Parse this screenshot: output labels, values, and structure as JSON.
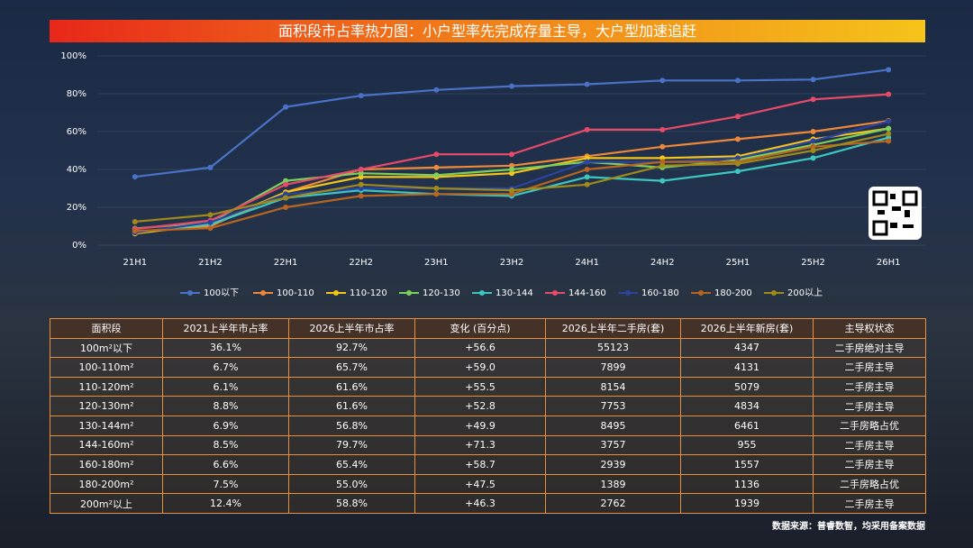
{
  "chart_data": {
    "type": "line",
    "title": "面积段市占率热力图：小户型率先完成存量主导，大户型加速追赶",
    "categories": [
      "21H1",
      "21H2",
      "22H1",
      "22H2",
      "23H1",
      "23H2",
      "24H1",
      "24H2",
      "25H1",
      "25H2",
      "26H1"
    ],
    "ylim": [
      0,
      100
    ],
    "yticks": [
      {
        "value": 0,
        "label": "0%"
      },
      {
        "value": 20,
        "label": "20%"
      },
      {
        "value": 40,
        "label": "40%"
      },
      {
        "value": 60,
        "label": "60%"
      },
      {
        "value": 80,
        "label": "80%"
      },
      {
        "value": 100,
        "label": "100%"
      }
    ],
    "legend": "bottom",
    "series": [
      {
        "name": "100以下",
        "color": "#4a72c8",
        "values": [
          36.1,
          41,
          73,
          79,
          82,
          84,
          85,
          87,
          87,
          87.5,
          92.7
        ]
      },
      {
        "name": "100-110",
        "color": "#f0883a",
        "values": [
          6.7,
          10,
          28,
          40,
          41,
          42,
          47,
          52,
          56,
          60,
          65.7
        ]
      },
      {
        "name": "110-120",
        "color": "#f5c518",
        "values": [
          6.1,
          11,
          28,
          36,
          36,
          38,
          46,
          46,
          47,
          56,
          61.6
        ]
      },
      {
        "name": "120-130",
        "color": "#7ccf5a",
        "values": [
          8.8,
          12,
          34,
          38,
          37,
          40,
          44,
          41,
          45,
          53,
          61.6
        ]
      },
      {
        "name": "130-144",
        "color": "#3cc8c0",
        "values": [
          6.9,
          11,
          25,
          29,
          27,
          26,
          36,
          34,
          39,
          46,
          56.8
        ]
      },
      {
        "name": "144-160",
        "color": "#e84a6a",
        "values": [
          8.5,
          13,
          32,
          40,
          48,
          48,
          61,
          61,
          68,
          77,
          79.7
        ]
      },
      {
        "name": "160-180",
        "color": "#2a44a0",
        "values": [
          6.6,
          12,
          27,
          30,
          30,
          30,
          44,
          44,
          46,
          55,
          65.4
        ]
      },
      {
        "name": "180-200",
        "color": "#b8661f",
        "values": [
          7.5,
          9,
          20,
          26,
          27,
          27,
          40,
          44,
          44,
          52,
          55.0
        ]
      },
      {
        "name": "200以上",
        "color": "#a08a1a",
        "values": [
          12.4,
          16,
          25,
          32,
          30,
          29,
          32,
          42,
          43,
          50,
          58.8
        ]
      }
    ]
  },
  "table": {
    "header": [
      "面积段",
      "2021上半年市占率",
      "2026上半年市占率",
      "变化 (百分点)",
      "2026上半年二手房(套)",
      "2026上半年新房(套)",
      "主导权状态"
    ],
    "rows": [
      [
        "100m²以下",
        "36.1%",
        "92.7%",
        "+56.6",
        "55123",
        "4347",
        "二手房绝对主导"
      ],
      [
        "100-110m²",
        "6.7%",
        "65.7%",
        "+59.0",
        "7899",
        "4131",
        "二手房主导"
      ],
      [
        "110-120m²",
        "6.1%",
        "61.6%",
        "+55.5",
        "8154",
        "5079",
        "二手房主导"
      ],
      [
        "120-130m²",
        "8.8%",
        "61.6%",
        "+52.8",
        "7753",
        "4834",
        "二手房主导"
      ],
      [
        "130-144m²",
        "6.9%",
        "56.8%",
        "+49.9",
        "8495",
        "6461",
        "二手房略占优"
      ],
      [
        "144-160m²",
        "8.5%",
        "79.7%",
        "+71.3",
        "3757",
        "955",
        "二手房主导"
      ],
      [
        "160-180m²",
        "6.6%",
        "65.4%",
        "+58.7",
        "2939",
        "1557",
        "二手房主导"
      ],
      [
        "180-200m²",
        "7.5%",
        "55.0%",
        "+47.5",
        "1389",
        "1136",
        "二手房略占优"
      ],
      [
        "200m²以上",
        "12.4%",
        "58.8%",
        "+46.3",
        "2762",
        "1939",
        "二手房主导"
      ]
    ]
  },
  "source": "数据来源：普睿数智，均采用备案数据"
}
